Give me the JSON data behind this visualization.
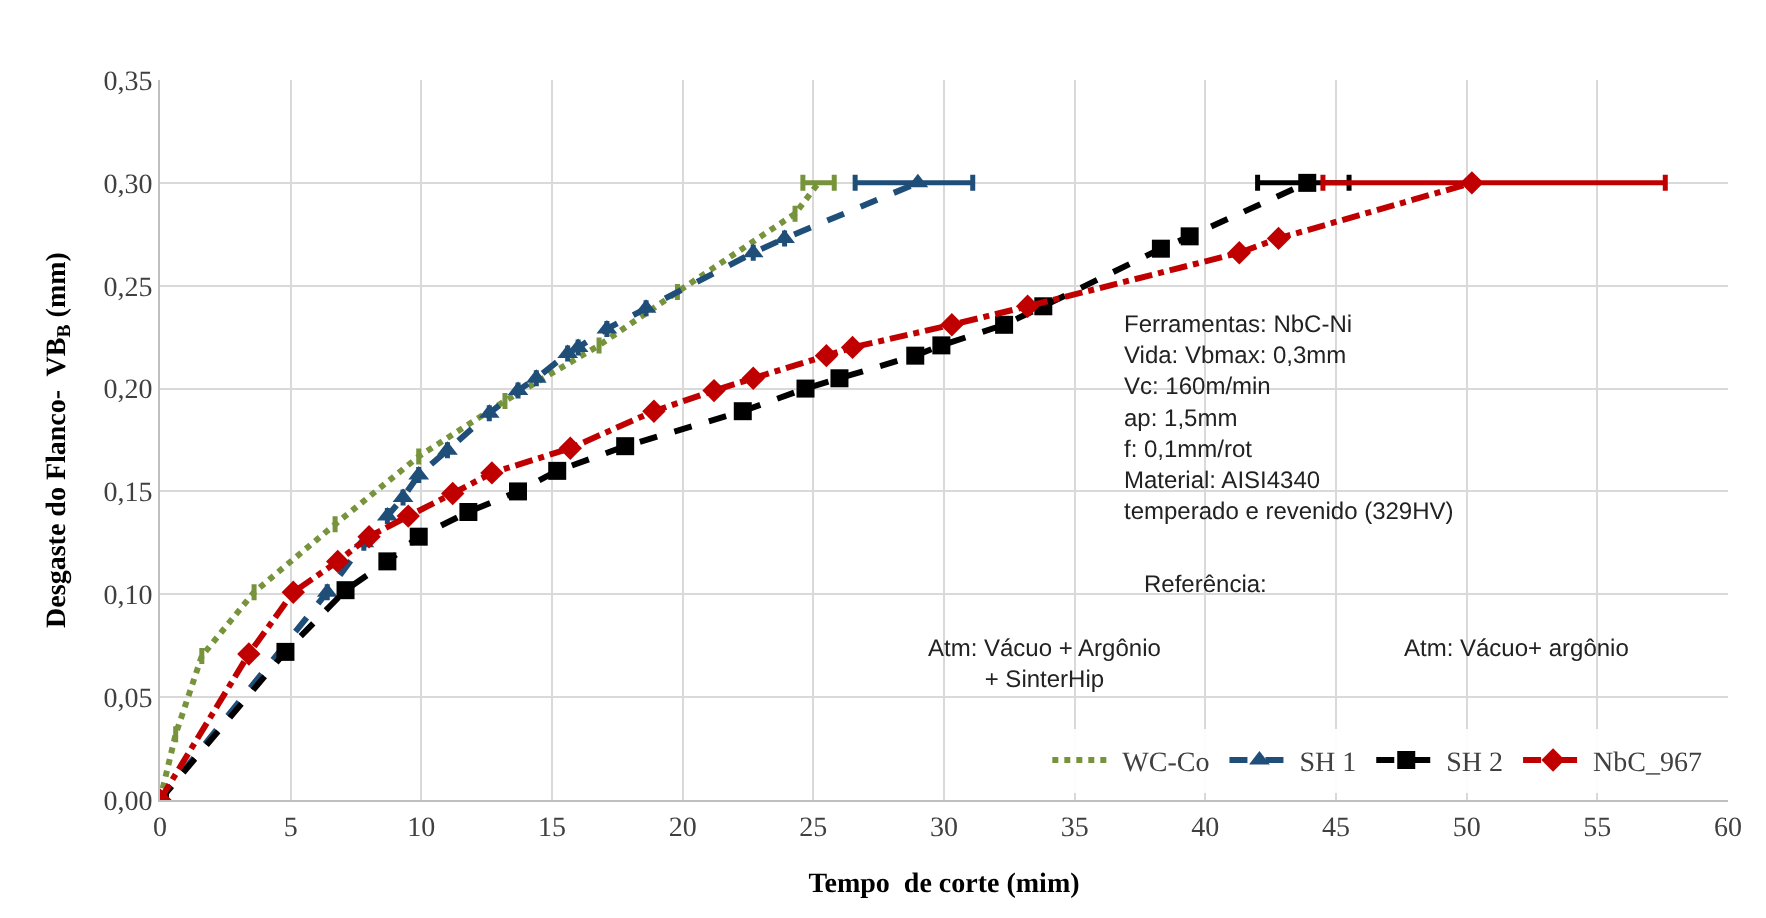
{
  "chart_data": {
    "type": "line",
    "xlabel": "Tempo  de corte (mim)",
    "ylabel": "Desgaste do Flanco-  VB$_{B}$ (mm)",
    "xlim": [
      0,
      60
    ],
    "xticks": [
      0,
      5,
      10,
      15,
      20,
      25,
      30,
      35,
      40,
      45,
      50,
      55,
      60
    ],
    "ylim": [
      0,
      0.35
    ],
    "yticks": [
      {
        "value": 0,
        "label": "0,00"
      },
      {
        "value": 0.05,
        "label": "0,05"
      },
      {
        "value": 0.1,
        "label": "0,10"
      },
      {
        "value": 0.15,
        "label": "0,15"
      },
      {
        "value": 0.2,
        "label": "0,20"
      },
      {
        "value": 0.25,
        "label": "0,25"
      },
      {
        "value": 0.3,
        "label": "0,30"
      },
      {
        "value": 0.35,
        "label": "0,35"
      }
    ],
    "grid": true,
    "legend": "bottom right",
    "series": [
      {
        "name": "WC-Co",
        "color": "#77933c",
        "line_style": "dotted",
        "marker": "none",
        "x": [
          0,
          0.6,
          1.6,
          3.6,
          6.7,
          9.9,
          13.2,
          16.8,
          19.8,
          24.3,
          25.2
        ],
        "values": [
          0,
          0.032,
          0.07,
          0.101,
          0.134,
          0.167,
          0.194,
          0.221,
          0.247,
          0.285,
          0.3
        ],
        "xerrors": [
          null,
          null,
          null,
          null,
          null,
          null,
          null,
          null,
          null,
          null,
          0.6
        ]
      },
      {
        "name": "SH 1",
        "color": "#1f4e79",
        "line_style": "dashed",
        "marker": "triangle",
        "x": [
          0,
          6.4,
          7.8,
          8.7,
          9.3,
          9.9,
          11.0,
          12.6,
          13.7,
          14.4,
          15.6,
          16.0,
          17.1,
          18.6,
          22.7,
          23.9,
          29.0
        ],
        "values": [
          0,
          0.101,
          0.125,
          0.138,
          0.147,
          0.158,
          0.17,
          0.188,
          0.199,
          0.205,
          0.217,
          0.22,
          0.229,
          0.239,
          0.266,
          0.273,
          0.3
        ],
        "xerrors": [
          null,
          null,
          null,
          null,
          null,
          null,
          null,
          null,
          null,
          null,
          null,
          null,
          null,
          null,
          null,
          null,
          [
            26.6,
            31.1
          ]
        ]
      },
      {
        "name": "SH 2",
        "color": "#000000",
        "line_style": "dashed",
        "marker": "square",
        "x": [
          0,
          4.8,
          7.1,
          8.7,
          9.9,
          11.8,
          13.7,
          15.2,
          17.8,
          22.3,
          24.7,
          26.0,
          28.9,
          29.9,
          32.3,
          33.8,
          38.3,
          39.4,
          43.9
        ],
        "values": [
          0,
          0.072,
          0.102,
          0.116,
          0.128,
          0.14,
          0.15,
          0.16,
          0.172,
          0.189,
          0.2,
          0.205,
          0.216,
          0.221,
          0.231,
          0.24,
          0.268,
          0.274,
          0.3
        ],
        "xerrors": [
          null,
          null,
          null,
          null,
          null,
          null,
          null,
          null,
          null,
          null,
          null,
          null,
          null,
          null,
          null,
          null,
          null,
          null,
          [
            42.0,
            45.5
          ]
        ]
      },
      {
        "name": "NbC_967",
        "color": "#c00000",
        "line_style": "dashdot",
        "marker": "diamond",
        "x": [
          0,
          3.4,
          5.1,
          6.8,
          8.0,
          9.5,
          11.2,
          12.7,
          15.7,
          18.9,
          21.2,
          22.7,
          25.5,
          26.5,
          30.3,
          33.2,
          41.3,
          42.8,
          50.2
        ],
        "values": [
          0,
          0.071,
          0.101,
          0.116,
          0.128,
          0.138,
          0.149,
          0.159,
          0.171,
          0.189,
          0.199,
          0.205,
          0.216,
          0.22,
          0.231,
          0.24,
          0.266,
          0.273,
          0.3
        ],
        "xerrors": [
          null,
          null,
          null,
          null,
          null,
          null,
          null,
          null,
          null,
          null,
          null,
          null,
          null,
          null,
          null,
          null,
          null,
          null,
          [
            44.5,
            57.6
          ]
        ]
      }
    ],
    "annotations": [
      "Ferramentas: NbC-Ni\nVida: Vbmax: 0,3mm\nVc: 160m/min\nap: 1,5mm\nf: 0,1mm/rot\nMaterial: AISI4340\ntemperado e revenido (329HV)",
      "Referência:",
      "Atm: Vácuo + Argônio\n+ SinterHip",
      "Atm: Vácuo+ argônio"
    ]
  }
}
